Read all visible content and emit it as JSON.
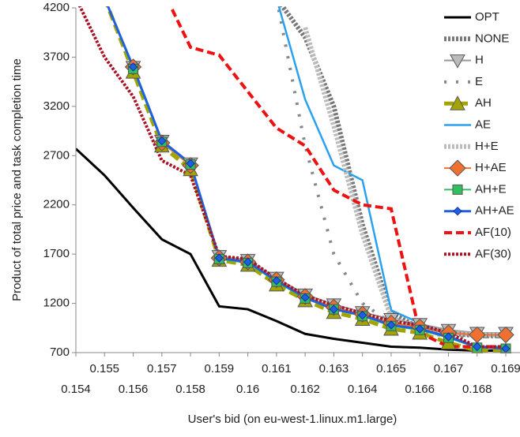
{
  "chart_data": {
    "type": "line",
    "x_label": "User's bid (on eu-west-1.linux.m1.large)",
    "y_label": "Product of total price and task completion time",
    "x": [
      0.154,
      0.155,
      0.156,
      0.157,
      0.158,
      0.159,
      0.16,
      0.161,
      0.162,
      0.163,
      0.164,
      0.165,
      0.166,
      0.167,
      0.168,
      0.169
    ],
    "xlim": [
      0.154,
      0.169
    ],
    "xticks": [
      0.154,
      0.155,
      0.156,
      0.157,
      0.158,
      0.159,
      0.16,
      0.161,
      0.162,
      0.163,
      0.164,
      0.165,
      0.166,
      0.167,
      0.168,
      0.169
    ],
    "ylim": [
      700,
      4200
    ],
    "yticks": [
      700,
      1200,
      1700,
      2200,
      2700,
      3200,
      3700,
      4200
    ],
    "legend": "top-right",
    "series": [
      {
        "name": "OPT",
        "color": "#000000",
        "width": 3,
        "dash": "none",
        "marker": "none",
        "values": [
          2770,
          2500,
          2170,
          1850,
          1700,
          1170,
          1140,
          1020,
          890,
          840,
          800,
          760,
          750,
          730,
          720,
          720
        ]
      },
      {
        "name": "NONE",
        "color": "#777777",
        "width": 6,
        "dash": "3,2",
        "marker": "none",
        "values": [
          null,
          null,
          null,
          null,
          null,
          null,
          null,
          4300,
          3900,
          3200,
          2000,
          1100,
          950,
          900,
          870,
          870
        ]
      },
      {
        "name": "H",
        "color": "#999999",
        "width": 2,
        "dash": "none",
        "marker": "triangle-down",
        "values": [
          null,
          null,
          3600,
          2850,
          2620,
          1680,
          1640,
          1460,
          1290,
          1190,
          1110,
          1040,
          990,
          930,
          900,
          900
        ]
      },
      {
        "name": "E",
        "color": "#888888",
        "width": 4,
        "dash": "3,12",
        "marker": "none",
        "values": [
          null,
          null,
          null,
          null,
          null,
          null,
          null,
          4300,
          2800,
          1700,
          1200,
          1000,
          900,
          870,
          860,
          860
        ]
      },
      {
        "name": "AH",
        "color": "#a4a400",
        "width": 5,
        "dash": "12,6",
        "marker": "triangle-up",
        "values": [
          null,
          4300,
          3550,
          2800,
          2560,
          1640,
          1590,
          1390,
          1230,
          1110,
          1040,
          940,
          900,
          800,
          720,
          720
        ]
      },
      {
        "name": "AE",
        "color": "#2aa0f0",
        "width": 2.5,
        "dash": "none",
        "marker": "none",
        "values": [
          null,
          null,
          null,
          null,
          null,
          null,
          null,
          4300,
          3270,
          2600,
          2450,
          1130,
          1000,
          870,
          760,
          760
        ]
      },
      {
        "name": "H+E",
        "color": "#bbbbbb",
        "width": 6,
        "dash": "3,2",
        "marker": "none",
        "values": [
          null,
          null,
          null,
          null,
          null,
          null,
          null,
          null,
          4000,
          3000,
          1900,
          1050,
          950,
          900,
          880,
          880
        ]
      },
      {
        "name": "H+AE",
        "color": "#f07030",
        "width": 2,
        "dash": "none",
        "marker": "diamond",
        "values": [
          null,
          4300,
          3600,
          2830,
          2600,
          1660,
          1620,
          1440,
          1270,
          1160,
          1090,
          1000,
          960,
          900,
          880,
          880
        ]
      },
      {
        "name": "AH+E",
        "color": "#30c060",
        "width": 2,
        "dash": "none",
        "marker": "square",
        "values": [
          null,
          4300,
          3580,
          2840,
          2610,
          1650,
          1610,
          1420,
          1250,
          1140,
          1070,
          970,
          930,
          850,
          750,
          740
        ]
      },
      {
        "name": "AH+AE",
        "color": "#2060e0",
        "width": 3,
        "dash": "none",
        "marker": "small-diamond",
        "values": [
          null,
          4300,
          3600,
          2850,
          2620,
          1660,
          1620,
          1430,
          1260,
          1140,
          1080,
          980,
          940,
          860,
          760,
          740
        ]
      },
      {
        "name": "AF(10)",
        "color": "#ee1111",
        "width": 4,
        "dash": "10,5",
        "marker": "none",
        "values": [
          null,
          null,
          null,
          4400,
          3800,
          3720,
          3350,
          2980,
          2800,
          2350,
          2200,
          2160,
          900,
          760,
          760,
          760
        ]
      },
      {
        "name": "AF(30)",
        "color": "#aa1122",
        "width": 4,
        "dash": "3,2",
        "marker": "none",
        "values": [
          4300,
          3700,
          3300,
          2650,
          2500,
          1680,
          1650,
          1450,
          1280,
          1180,
          1100,
          1020,
          980,
          900,
          760,
          760
        ]
      }
    ]
  }
}
